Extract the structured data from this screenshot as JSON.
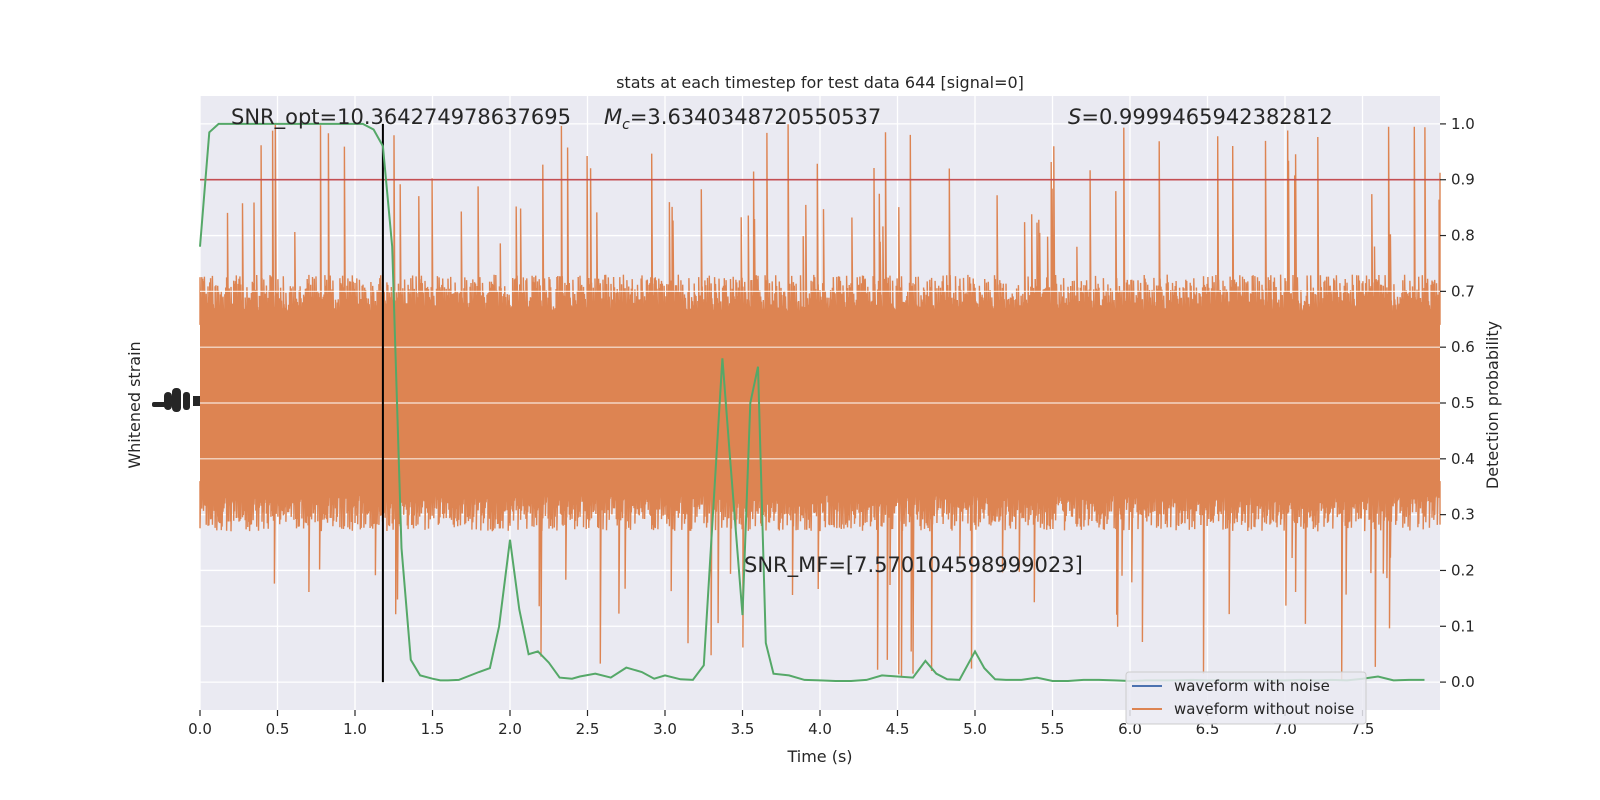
{
  "chart_data": {
    "type": "line",
    "title": "stats at each timestep for test data 644 [signal=0]",
    "xlabel": "Time (s)",
    "ylabel_left": "Whitened strain",
    "ylabel_right": "Detection probability",
    "xlim": [
      0,
      8
    ],
    "ylim_right": [
      -0.05,
      1.05
    ],
    "x_ticks": [
      0.0,
      0.5,
      1.0,
      1.5,
      2.0,
      2.5,
      3.0,
      3.5,
      4.0,
      4.5,
      5.0,
      5.5,
      6.0,
      6.5,
      7.0,
      7.5
    ],
    "x_tick_labels": [
      "0.0",
      "0.5",
      "1.0",
      "1.5",
      "2.0",
      "2.5",
      "3.0",
      "3.5",
      "4.0",
      "4.5",
      "5.0",
      "5.5",
      "6.0",
      "6.5",
      "7.0",
      "7.5"
    ],
    "y_ticks_right": [
      0.0,
      0.1,
      0.2,
      0.3,
      0.4,
      0.5,
      0.6,
      0.7,
      0.8,
      0.9,
      1.0
    ],
    "y_tick_labels_right": [
      "0.0",
      "0.1",
      "0.2",
      "0.3",
      "0.4",
      "0.5",
      "0.6",
      "0.7",
      "0.8",
      "0.9",
      "1.0"
    ],
    "grid": true,
    "legend_position": "bottom-right",
    "annotations": {
      "snr_opt": "SNR_opt=10.364274978637695",
      "mc_symbol": "M",
      "mc_sub": "c",
      "mc_value": "=3.6340348720550537",
      "s_symbol": "S",
      "s_value": "=0.9999465942382812",
      "snr_mf": "SNR_MF=[7.570104598999023]"
    },
    "threshold": 0.9,
    "marker_time": 1.18,
    "noise_band": {
      "center": 0.5,
      "envelope_min": 0.27,
      "envelope_max": 0.73,
      "spike_max": 1.0,
      "spike_min": 0.0
    },
    "series": [
      {
        "name": "waveform with noise",
        "color": "#4c72b0",
        "role": "legend-only"
      },
      {
        "name": "waveform without noise",
        "color": "#dd8452",
        "role": "strain-fill"
      },
      {
        "name": "",
        "color": "#55a868",
        "role": "detection-probability",
        "x": [
          0.0,
          0.06,
          0.12,
          0.18,
          0.25,
          0.5,
          0.75,
          1.0,
          1.05,
          1.12,
          1.18,
          1.24,
          1.3,
          1.36,
          1.42,
          1.5,
          1.55,
          1.6,
          1.67,
          1.8,
          1.87,
          1.93,
          2.0,
          2.06,
          2.12,
          2.18,
          2.25,
          2.32,
          2.4,
          2.45,
          2.55,
          2.65,
          2.75,
          2.85,
          2.93,
          3.0,
          3.1,
          3.18,
          3.25,
          3.32,
          3.37,
          3.42,
          3.5,
          3.55,
          3.6,
          3.65,
          3.7,
          3.8,
          3.9,
          4.0,
          4.1,
          4.2,
          4.3,
          4.4,
          4.5,
          4.6,
          4.68,
          4.75,
          4.82,
          4.9,
          5.0,
          5.06,
          5.13,
          5.2,
          5.3,
          5.4,
          5.5,
          5.6,
          5.7,
          5.8,
          5.9,
          6.0,
          6.1,
          6.2,
          6.3,
          6.4,
          6.5,
          6.6,
          6.7,
          6.8,
          6.9,
          7.0,
          7.1,
          7.2,
          7.3,
          7.4,
          7.5,
          7.6,
          7.7,
          7.8,
          7.9
        ],
        "y": [
          0.78,
          0.985,
          1.0,
          1.0,
          1.0,
          1.0,
          1.0,
          1.0,
          1.0,
          0.99,
          0.96,
          0.78,
          0.24,
          0.04,
          0.012,
          0.006,
          0.003,
          0.003,
          0.004,
          0.018,
          0.025,
          0.1,
          0.255,
          0.13,
          0.05,
          0.055,
          0.035,
          0.008,
          0.006,
          0.01,
          0.015,
          0.008,
          0.026,
          0.018,
          0.006,
          0.012,
          0.005,
          0.004,
          0.03,
          0.35,
          0.58,
          0.4,
          0.12,
          0.5,
          0.565,
          0.07,
          0.015,
          0.012,
          0.004,
          0.003,
          0.002,
          0.002,
          0.004,
          0.012,
          0.01,
          0.008,
          0.038,
          0.015,
          0.005,
          0.004,
          0.055,
          0.025,
          0.005,
          0.004,
          0.004,
          0.008,
          0.002,
          0.002,
          0.004,
          0.004,
          0.003,
          0.002,
          0.003,
          0.003,
          0.003,
          0.004,
          0.003,
          0.003,
          0.003,
          0.003,
          0.003,
          0.003,
          0.004,
          0.003,
          0.004,
          0.003,
          0.006,
          0.01,
          0.003,
          0.004,
          0.004
        ]
      }
    ]
  }
}
